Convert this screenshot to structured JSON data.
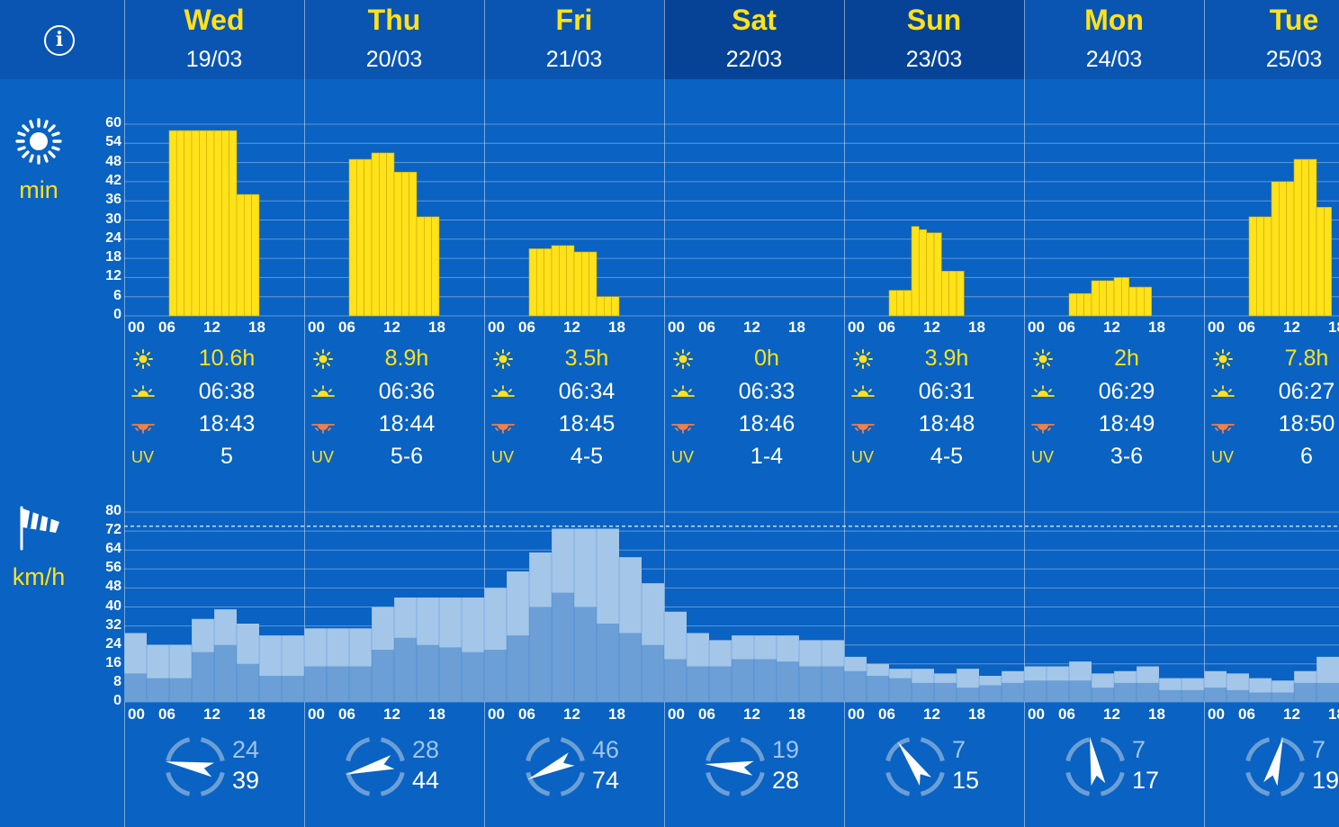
{
  "header": {
    "info_icon": "info-icon"
  },
  "days": [
    {
      "name": "Wed",
      "date": "19/03",
      "weekend": false,
      "sunshine": "10.6h",
      "sunrise": "06:38",
      "sunset": "18:43",
      "uv": "5",
      "wind_avg": "24",
      "wind_gust": "39",
      "wind_dir_deg": 280
    },
    {
      "name": "Thu",
      "date": "20/03",
      "weekend": false,
      "sunshine": "8.9h",
      "sunrise": "06:36",
      "sunset": "18:44",
      "uv": "5-6",
      "wind_avg": "28",
      "wind_gust": "44",
      "wind_dir_deg": 255
    },
    {
      "name": "Fri",
      "date": "21/03",
      "weekend": false,
      "sunshine": "3.5h",
      "sunrise": "06:34",
      "sunset": "18:45",
      "uv": "4-5",
      "wind_avg": "46",
      "wind_gust": "74",
      "wind_dir_deg": 245
    },
    {
      "name": "Sat",
      "date": "22/03",
      "weekend": true,
      "sunshine": "0h",
      "sunrise": "06:33",
      "sunset": "18:46",
      "uv": "1-4",
      "wind_avg": "19",
      "wind_gust": "28",
      "wind_dir_deg": 275
    },
    {
      "name": "Sun",
      "date": "23/03",
      "weekend": true,
      "sunshine": "3.9h",
      "sunrise": "06:31",
      "sunset": "18:48",
      "uv": "4-5",
      "wind_avg": "7",
      "wind_gust": "15",
      "wind_dir_deg": 325
    },
    {
      "name": "Mon",
      "date": "24/03",
      "weekend": false,
      "sunshine": "2h",
      "sunrise": "06:29",
      "sunset": "18:49",
      "uv": "3-6",
      "wind_avg": "7",
      "wind_gust": "17",
      "wind_dir_deg": 350
    },
    {
      "name": "Tue",
      "date": "25/03",
      "weekend": false,
      "sunshine": "7.8h",
      "sunrise": "06:27",
      "sunset": "18:50",
      "uv": "6",
      "wind_avg": "7",
      "wind_gust": "19",
      "wind_dir_deg": 15
    }
  ],
  "hour_labels": [
    "00",
    "06",
    "12",
    "18"
  ],
  "uv_label": "UV",
  "sunshine_panel": {
    "unit_label": "min",
    "icon": "sun-icon",
    "y_ticks": [
      "60",
      "54",
      "48",
      "42",
      "36",
      "30",
      "24",
      "18",
      "12",
      "6",
      "0"
    ]
  },
  "wind_panel": {
    "unit_label": "km/h",
    "icon": "windsock-icon",
    "y_ticks": [
      "80",
      "72",
      "64",
      "56",
      "48",
      "40",
      "32",
      "24",
      "16",
      "8",
      "0"
    ]
  },
  "colors": {
    "background": "#0a62c2",
    "header": "#0a55b1",
    "weekend_header": "#064396",
    "accent_yellow": "#ffe21a",
    "wind_avg": "#6b9fd6",
    "wind_gust": "#a4c6e8",
    "sunset": "#f0804a"
  },
  "chart_data": [
    {
      "type": "bar",
      "title": "",
      "ylabel": "min",
      "ylim": [
        0,
        60
      ],
      "x_unit": "3-hour steps from Wed 19/03 00:00",
      "categories": [
        "Wed 00",
        "Wed 03",
        "Wed 06",
        "Wed 09",
        "Wed 12",
        "Wed 15",
        "Wed 18",
        "Wed 21",
        "Thu 00",
        "Thu 03",
        "Thu 06",
        "Thu 09",
        "Thu 12",
        "Thu 15",
        "Thu 18",
        "Thu 21",
        "Fri 00",
        "Fri 03",
        "Fri 06",
        "Fri 09",
        "Fri 12",
        "Fri 15",
        "Fri 18",
        "Fri 21",
        "Sat 00",
        "Sat 03",
        "Sat 06",
        "Sat 09",
        "Sat 12",
        "Sat 15",
        "Sat 18",
        "Sat 21",
        "Sun 00",
        "Sun 03",
        "Sun 06",
        "Sun 09",
        "Sun 12",
        "Sun 15",
        "Sun 18",
        "Sun 21",
        "Mon 00",
        "Mon 03",
        "Mon 06",
        "Mon 09",
        "Mon 12",
        "Mon 15",
        "Mon 18",
        "Mon 21",
        "Tue 00",
        "Tue 03",
        "Tue 06",
        "Tue 09",
        "Tue 12",
        "Tue 15"
      ],
      "values": [
        0,
        0,
        0,
        0,
        0,
        0,
        0,
        0,
        0,
        0,
        0,
        0,
        0,
        0,
        0,
        0,
        0,
        0,
        0,
        0,
        0,
        0,
        0,
        0,
        0,
        0,
        0,
        0,
        0,
        0,
        0,
        0,
        0,
        0,
        0,
        0,
        0,
        0,
        0,
        0,
        0,
        0,
        0,
        0,
        0,
        0,
        0,
        0,
        0,
        0,
        0,
        0,
        0,
        0
      ],
      "hourly_values": [
        0,
        0,
        0,
        0,
        0,
        0,
        58,
        58,
        58,
        58,
        58,
        58,
        58,
        58,
        58,
        38,
        38,
        38,
        0,
        0,
        0,
        0,
        0,
        0,
        0,
        0,
        0,
        0,
        0,
        0,
        49,
        49,
        49,
        51,
        51,
        51,
        45,
        45,
        45,
        31,
        31,
        31,
        0,
        0,
        0,
        0,
        0,
        0,
        0,
        0,
        0,
        0,
        0,
        0,
        21,
        21,
        21,
        22,
        22,
        22,
        20,
        20,
        20,
        6,
        6,
        6,
        0,
        0,
        0,
        0,
        0,
        0,
        0,
        0,
        0,
        0,
        0,
        0,
        0,
        0,
        0,
        0,
        0,
        0,
        0,
        0,
        0,
        0,
        0,
        0,
        0,
        0,
        0,
        0,
        0,
        0,
        0,
        0,
        0,
        0,
        0,
        0,
        8,
        8,
        8,
        28,
        27,
        26,
        26,
        14,
        14,
        14,
        0,
        0,
        0,
        0,
        0,
        0,
        0,
        0,
        0,
        0,
        0,
        0,
        0,
        0,
        7,
        7,
        7,
        11,
        11,
        11,
        12,
        12,
        9,
        9,
        9,
        0,
        0,
        0,
        0,
        0,
        0,
        0,
        0,
        0,
        0,
        0,
        0,
        0,
        31,
        31,
        31,
        42,
        42,
        42,
        49,
        49,
        49,
        34,
        34
      ]
    },
    {
      "type": "bar",
      "title": "",
      "ylabel": "km/h",
      "ylim": [
        0,
        80
      ],
      "reference_line": 74,
      "series": [
        {
          "name": "",
          "values": [
            29,
            24,
            24,
            35,
            39,
            33,
            28,
            28,
            31,
            31,
            31,
            40,
            44,
            44,
            44,
            44,
            48,
            55,
            63,
            73,
            73,
            73,
            61,
            50,
            38,
            29,
            26,
            28,
            28,
            28,
            26,
            26,
            19,
            16,
            14,
            14,
            12,
            14,
            11,
            13,
            15,
            15,
            17,
            12,
            13,
            15,
            10,
            10,
            13,
            12,
            10,
            9,
            13,
            19,
            11
          ]
        },
        {
          "name": "",
          "values": [
            12,
            10,
            10,
            21,
            24,
            16,
            11,
            11,
            15,
            15,
            15,
            22,
            27,
            24,
            23,
            21,
            22,
            28,
            40,
            46,
            40,
            33,
            29,
            24,
            18,
            15,
            15,
            18,
            18,
            17,
            15,
            15,
            13,
            11,
            10,
            8,
            8,
            6,
            7,
            8,
            9,
            9,
            9,
            6,
            8,
            8,
            5,
            5,
            6,
            5,
            4,
            4,
            8,
            8,
            6
          ]
        }
      ],
      "x_unit": "3-hour steps from Wed 19/03 00:00"
    }
  ]
}
